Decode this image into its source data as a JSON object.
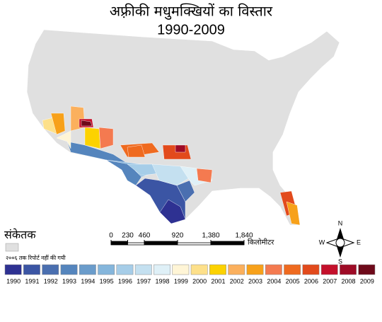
{
  "title": "अफ़्रीकी मधुमक्खियों का विस्तार",
  "subtitle": "1990-2009",
  "legend": {
    "title": "संकेतक",
    "no_data_label": "२००६ तक रिपोर्ट नहीं की गयी",
    "no_data_color": "#e0e0e0",
    "items": [
      {
        "label": "1990",
        "color": "#2e3192"
      },
      {
        "label": "1991",
        "color": "#3b55a4"
      },
      {
        "label": "1992",
        "color": "#4a6fb0"
      },
      {
        "label": "1993",
        "color": "#5585bd"
      },
      {
        "label": "1994",
        "color": "#6a9ccb"
      },
      {
        "label": "1995",
        "color": "#85b6dc"
      },
      {
        "label": "1996",
        "color": "#a6cde8"
      },
      {
        "label": "1997",
        "color": "#c4e0f0"
      },
      {
        "label": "1998",
        "color": "#dff0f7"
      },
      {
        "label": "1999",
        "color": "#fff5d6"
      },
      {
        "label": "2000",
        "color": "#fde08a"
      },
      {
        "label": "2001",
        "color": "#fcd200"
      },
      {
        "label": "2002",
        "color": "#fbb05d"
      },
      {
        "label": "2003",
        "color": "#f7a11a"
      },
      {
        "label": "2004",
        "color": "#f47a50"
      },
      {
        "label": "2005",
        "color": "#ef6a1f"
      },
      {
        "label": "2006",
        "color": "#e24a1c"
      },
      {
        "label": "2007",
        "color": "#c4102b"
      },
      {
        "label": "2008",
        "color": "#9e0b26"
      },
      {
        "label": "2009",
        "color": "#6e0a1a"
      }
    ]
  },
  "scale_bar": {
    "ticks": [
      0,
      230,
      460,
      920,
      {
        "value": 1380,
        "label": "1,380"
      },
      {
        "value": 1840,
        "label": "1,840"
      }
    ],
    "unit": "किलोमीटर"
  },
  "compass": {
    "north": "N",
    "south": "S",
    "east": "E",
    "west": "W"
  }
}
